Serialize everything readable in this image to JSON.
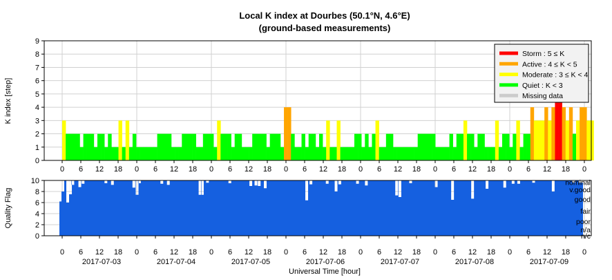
{
  "chart_data": [
    {
      "type": "bar",
      "title": "Local K index at Dourbes (50.1°N, 4.6°E)",
      "subtitle": "(ground-based measurements)",
      "ylabel": "K index [step]",
      "ylim": [
        0,
        9
      ],
      "yticks": [
        "0",
        "1",
        "2",
        "3",
        "4",
        "5",
        "6",
        "7",
        "8",
        "9"
      ],
      "grid": true,
      "legend_position": "top-right",
      "x_unit": "3-hour interval index (0 = 2017-07-02 00:00 UT)",
      "xlim": [
        0,
        64
      ],
      "legend": [
        {
          "label": "Storm : 5 ≤ K",
          "color": "#ff0000"
        },
        {
          "label": "Active : 4 ≤ K < 5",
          "color": "#ffa500"
        },
        {
          "label": "Moderate : 3 ≤ K < 4",
          "color": "#ffff00"
        },
        {
          "label": "Quiet : K < 3",
          "color": "#00ff00"
        },
        {
          "label": "Missing data",
          "color": "#cccccc"
        }
      ],
      "values": [
        3,
        2,
        2,
        2,
        2,
        1,
        2,
        2,
        2,
        1,
        2,
        2,
        1,
        2,
        1,
        1,
        3,
        1,
        3,
        1,
        2,
        1,
        1,
        1,
        1,
        1,
        1,
        2,
        2,
        2,
        2,
        1,
        1,
        1,
        2,
        2,
        2,
        2,
        1,
        1,
        2,
        2,
        2,
        1,
        3,
        2,
        2,
        2,
        1,
        2,
        2,
        1,
        1,
        1,
        2,
        2,
        2,
        2,
        1,
        2,
        2,
        2,
        1,
        4,
        4,
        2,
        1,
        1,
        2,
        1,
        2,
        2,
        1,
        2,
        1,
        3,
        1,
        1,
        3,
        1,
        1,
        1,
        1,
        2,
        2,
        1,
        2,
        1,
        2,
        3,
        1,
        1,
        2,
        2,
        1,
        1,
        1,
        1,
        1,
        1,
        1,
        2,
        2,
        2,
        2,
        2,
        1,
        1,
        1,
        1,
        2,
        1,
        2,
        2,
        3,
        2,
        2,
        1,
        2,
        2,
        1,
        1,
        1,
        3,
        1,
        2,
        2,
        1,
        2,
        3,
        1,
        2,
        2,
        4,
        3,
        3,
        3,
        4,
        3,
        4,
        5,
        6,
        4,
        3,
        4,
        2,
        3,
        4,
        4,
        3,
        3
      ]
    },
    {
      "type": "bar",
      "ylabel": "Quality Flag",
      "ylim": [
        0,
        10
      ],
      "yticks": [
        "0",
        "2",
        "4",
        "6",
        "8",
        "10"
      ],
      "color": "#1560e0",
      "flag_labels": [
        "nominal",
        "v.good",
        "good",
        "fair",
        "poor",
        "n/a",
        "n/c"
      ],
      "xlabel": "Universal Time [hour]",
      "hour_ticks": [
        "0",
        "6",
        "12",
        "18"
      ],
      "dates": [
        "2017-07-03",
        "2017-07-04",
        "2017-07-05",
        "2017-07-06",
        "2017-07-07",
        "2017-07-08",
        "2017-07-09"
      ]
    }
  ]
}
